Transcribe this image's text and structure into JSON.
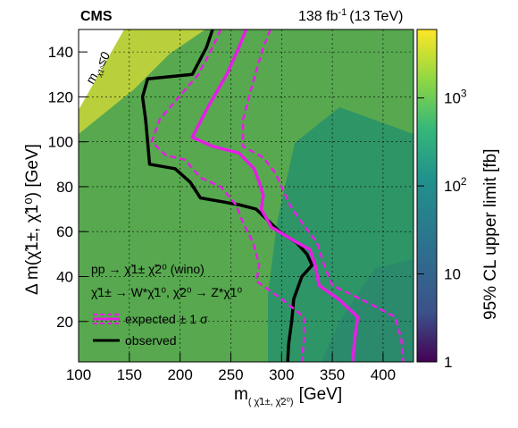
{
  "header": {
    "experiment": "CMS",
    "luminosity_value": "138 fb",
    "luminosity_exp": "-1",
    "energy": "(13 TeV)"
  },
  "chart_data": {
    "type": "heatmap",
    "title": "",
    "xlabel": "m(χ̃1±, χ̃2⁰) [GeV]",
    "xlabel_main": "m",
    "xlabel_sub": "( χ̃1±, χ̃2⁰)",
    "xlabel_unit": "[GeV]",
    "ylabel": "Δ m(χ̃1±, χ̃1⁰) [GeV]",
    "zlabel": "95% CL upper limit [fb]",
    "xlim": [
      100,
      430
    ],
    "ylim": [
      2,
      150
    ],
    "zlim": [
      1,
      6000
    ],
    "zscale": "log",
    "x_ticks": [
      100,
      150,
      200,
      250,
      300,
      350,
      400
    ],
    "y_ticks": [
      20,
      40,
      60,
      80,
      100,
      120,
      140
    ],
    "z_ticks": [
      {
        "value": 1,
        "label": "1"
      },
      {
        "value": 10,
        "label": "10"
      },
      {
        "value": 100,
        "label": "10",
        "exp": "2"
      },
      {
        "value": 1000,
        "label": "10",
        "exp": "3"
      }
    ],
    "grid": true,
    "excluded_region_label": "m χ̃1⁰ ≤ 0",
    "excluded_region_main": "m",
    "excluded_region_sub": "χ̃1⁰",
    "excluded_region_cond": "≤0",
    "heatmap_regions": [
      {
        "zone": "high",
        "value": 1500,
        "color": "#c9d63c"
      },
      {
        "zone": "mid",
        "value": 300,
        "color": "#6db64a"
      },
      {
        "zone": "low",
        "value": 60,
        "color": "#2f9a66"
      }
    ],
    "legend": {
      "placement": "bottom-left",
      "process_line1": "pp → χ̃1± χ̃2⁰  (wino)",
      "process_line2": "χ̃1± → W*χ̃1⁰,  χ̃2⁰ → Z*χ̃1⁰",
      "entries": [
        {
          "name": "expected ± 1 σ",
          "color": "#e61ee6",
          "style": "solid+dashed"
        },
        {
          "name": "observed",
          "color": "#000000",
          "style": "solid"
        }
      ]
    },
    "series": [
      {
        "name": "observed",
        "color": "#000000",
        "points": [
          [
            232,
            150
          ],
          [
            226,
            142
          ],
          [
            212,
            130
          ],
          [
            168,
            128
          ],
          [
            163,
            120
          ],
          [
            166,
            110
          ],
          [
            168,
            100
          ],
          [
            170,
            90
          ],
          [
            195,
            88
          ],
          [
            210,
            82
          ],
          [
            220,
            75
          ],
          [
            258,
            72
          ],
          [
            275,
            70
          ],
          [
            298,
            60
          ],
          [
            315,
            55
          ],
          [
            325,
            50
          ],
          [
            330,
            45
          ],
          [
            320,
            40
          ],
          [
            312,
            30
          ],
          [
            310,
            20
          ],
          [
            307,
            10
          ],
          [
            306,
            2
          ]
        ]
      },
      {
        "name": "expected",
        "color": "#e61ee6",
        "points": [
          [
            265,
            150
          ],
          [
            258,
            142
          ],
          [
            246,
            130
          ],
          [
            227,
            115
          ],
          [
            212,
            102
          ],
          [
            232,
            98
          ],
          [
            258,
            95
          ],
          [
            273,
            88
          ],
          [
            278,
            82
          ],
          [
            282,
            76
          ],
          [
            280,
            70
          ],
          [
            290,
            62
          ],
          [
            312,
            56
          ],
          [
            328,
            52
          ],
          [
            333,
            45
          ],
          [
            337,
            36
          ],
          [
            356,
            30
          ],
          [
            375,
            22
          ],
          [
            372,
            12
          ],
          [
            370,
            2
          ]
        ]
      },
      {
        "name": "expected + 1σ",
        "color": "#e61ee6",
        "style": "dashed",
        "points": [
          [
            289,
            150
          ],
          [
            282,
            142
          ],
          [
            274,
            130
          ],
          [
            262,
            110
          ],
          [
            262,
            98
          ],
          [
            282,
            93
          ],
          [
            294,
            86
          ],
          [
            300,
            80
          ],
          [
            308,
            72
          ],
          [
            320,
            64
          ],
          [
            335,
            55
          ],
          [
            342,
            45
          ],
          [
            350,
            36
          ],
          [
            378,
            30
          ],
          [
            412,
            22
          ],
          [
            418,
            12
          ],
          [
            420,
            2
          ]
        ]
      },
      {
        "name": "expected − 1σ",
        "color": "#e61ee6",
        "style": "dashed",
        "points": [
          [
            240,
            150
          ],
          [
            232,
            142
          ],
          [
            218,
            130
          ],
          [
            180,
            110
          ],
          [
            172,
            100
          ],
          [
            186,
            94
          ],
          [
            205,
            92
          ],
          [
            220,
            84
          ],
          [
            240,
            80
          ],
          [
            255,
            72
          ],
          [
            262,
            64
          ],
          [
            272,
            55
          ],
          [
            278,
            45
          ],
          [
            275,
            38
          ],
          [
            300,
            30
          ],
          [
            322,
            22
          ],
          [
            322,
            12
          ],
          [
            320,
            2
          ]
        ]
      }
    ]
  }
}
